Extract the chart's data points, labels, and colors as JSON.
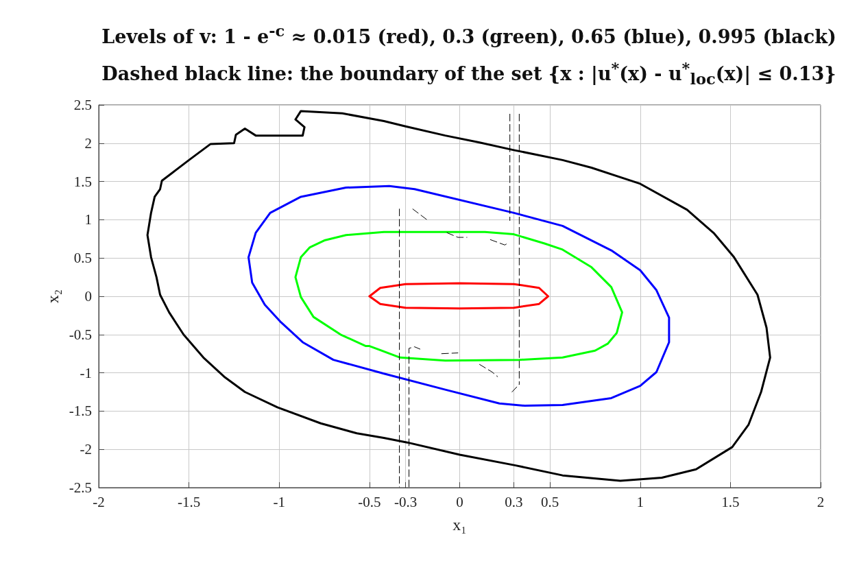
{
  "chart_data": {
    "type": "line",
    "title": "Levels of v: 1 - e$^{-c}$ ≈ 0.015 (red), 0.3 (green), 0.65 (blue), 0.995 (black)",
    "subtitle": "Dashed black line: the boundary of the set  {x : |u$^{*}$(x) - u$^{*}$$_{loc}$(x)| ≤ 0.13}",
    "xlabel": "x₁",
    "ylabel": "x₂",
    "xlim": [
      -2,
      2
    ],
    "ylim": [
      -2.5,
      2.5
    ],
    "xticks": [
      -2,
      -1.5,
      -1,
      -0.5,
      -0.3,
      0,
      0.3,
      0.5,
      1,
      1.5,
      2
    ],
    "yticks": [
      -2.5,
      -2,
      -1.5,
      -1,
      -0.5,
      0,
      0.5,
      1,
      1.5,
      2,
      2.5
    ],
    "grid": true,
    "marker": "none",
    "series": [
      {
        "color": "#ff0000",
        "x": [
          -0.5,
          -0.44,
          -0.3,
          0,
          0.3,
          0.44,
          0.49,
          null,
          -0.5,
          -0.44,
          -0.3,
          0,
          0.3,
          0.44,
          0.49
        ],
        "values": [
          0,
          0.11,
          0.16,
          0.17,
          0.16,
          0.11,
          0,
          null,
          0,
          -0.1,
          -0.15,
          -0.16,
          -0.15,
          -0.1,
          0
        ]
      },
      {
        "color": "#00ff00",
        "x": [
          -0.91,
          -0.88,
          -0.83,
          -0.75,
          -0.63,
          -0.42,
          0.14,
          0.3,
          0.47,
          0.57,
          0.73,
          0.84,
          0.9,
          null,
          -0.91,
          -0.88,
          -0.81,
          -0.66,
          -0.52,
          -0.5,
          -0.33,
          -0.08,
          0.33,
          0.57,
          0.75,
          0.82,
          0.87,
          0.9
        ],
        "values": [
          0.25,
          0.51,
          0.64,
          0.73,
          0.8,
          0.84,
          0.84,
          0.81,
          0.69,
          0.61,
          0.38,
          0.12,
          -0.21,
          null,
          0.25,
          -0.01,
          -0.27,
          -0.5,
          -0.65,
          -0.65,
          -0.8,
          -0.84,
          -0.83,
          -0.8,
          -0.71,
          -0.62,
          -0.48,
          -0.21
        ]
      },
      {
        "color": "#0000ff",
        "x": [
          -1.17,
          -1.13,
          -1.05,
          -0.88,
          -0.63,
          -0.39,
          -0.25,
          0.3,
          0.57,
          0.84,
          1,
          1.09,
          1.16,
          null,
          -1.17,
          -1.15,
          -1.08,
          -0.99,
          -0.87,
          -0.7,
          -0.42,
          -0.08,
          0.22,
          0.36,
          0.57,
          0.84,
          1,
          1.09,
          1.16,
          1.16
        ],
        "values": [
          0.51,
          0.83,
          1.09,
          1.3,
          1.42,
          1.44,
          1.4,
          1.09,
          0.92,
          0.6,
          0.34,
          0.08,
          -0.28,
          null,
          0.51,
          0.18,
          -0.11,
          -0.34,
          -0.6,
          -0.83,
          -1.01,
          -1.22,
          -1.4,
          -1.43,
          -1.42,
          -1.33,
          -1.17,
          -0.99,
          -0.6,
          -0.28
        ]
      },
      {
        "color": "#000000",
        "x": [
          -1.73,
          -1.71,
          -1.69,
          -1.66,
          -1.65,
          -1.6,
          -1.5,
          -1.38,
          -1.25,
          -1.24,
          -1.19,
          -1.13,
          -0.87,
          -0.86,
          null,
          -0.91,
          -0.86,
          null,
          -0.91,
          -0.88,
          -0.65,
          -0.42,
          -0.3,
          -0.08,
          0.11,
          0.3,
          0.57,
          0.73,
          1,
          1.26,
          1.41,
          1.52,
          1.65,
          1.7,
          1.72,
          null,
          -1.73,
          -1.71,
          -1.68,
          -1.66,
          -1.61,
          -1.53,
          -1.42,
          -1.3,
          -1.19,
          -1.01,
          -0.77,
          -0.57,
          -0.42,
          -0.29,
          0,
          0.31,
          0.57,
          0.89,
          1.12,
          1.31,
          1.51,
          1.6,
          1.67,
          1.72
        ],
        "values": [
          0.8,
          1.09,
          1.3,
          1.4,
          1.51,
          1.6,
          1.78,
          1.99,
          2,
          2.11,
          2.19,
          2.1,
          2.1,
          2.21,
          null,
          2.31,
          2.21,
          null,
          2.31,
          2.42,
          2.39,
          2.29,
          2.22,
          2.1,
          2.01,
          1.91,
          1.78,
          1.68,
          1.47,
          1.13,
          0.82,
          0.51,
          0.02,
          -0.41,
          -0.8,
          null,
          0.8,
          0.51,
          0.25,
          0.02,
          -0.21,
          -0.5,
          -0.8,
          -1.06,
          -1.25,
          -1.45,
          -1.66,
          -1.79,
          -1.85,
          -1.91,
          -2.07,
          -2.21,
          -2.34,
          -2.41,
          -2.37,
          -2.26,
          -1.97,
          -1.68,
          -1.25,
          -0.8
        ]
      },
      {
        "color": "#000000",
        "line_style": "dashed",
        "x": [
          -0.334,
          -0.334,
          null,
          -0.281,
          -0.281,
          -0.25,
          -0.22,
          null,
          0.278,
          0.278,
          null,
          0.33,
          0.33,
          null,
          0.29,
          0.33,
          null,
          -0.26,
          -0.17,
          null,
          -0.07,
          -0.01,
          0.04,
          null,
          0.17,
          0.25,
          0.27,
          null,
          -0.1,
          -0.01,
          null,
          0.11,
          0.18,
          0.21
        ],
        "values": [
          1.14,
          -2.49,
          null,
          -2.49,
          -0.68,
          -0.66,
          -0.69,
          null,
          2.38,
          0.99,
          null,
          2.38,
          -1.15,
          null,
          -1.25,
          -1.15,
          null,
          1.14,
          0.98,
          null,
          0.83,
          0.77,
          0.77,
          null,
          0.74,
          0.67,
          0.7,
          null,
          -0.75,
          -0.74,
          null,
          -0.89,
          -0.99,
          -1.05
        ]
      }
    ]
  }
}
